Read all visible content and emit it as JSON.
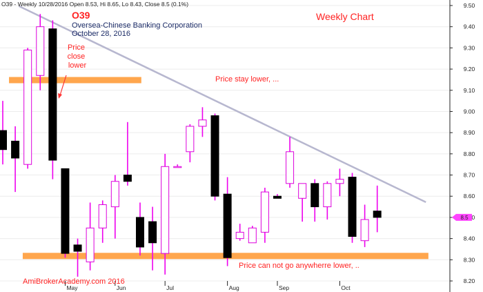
{
  "header": {
    "info_line": "O39 - Weekly 10/28/2016 Open 8.53, Hi 8.65, Lo 8.43, Close 8.5 (0.1%)",
    "symbol": "O39",
    "company": "Oversea-Chinese Banking Corporation",
    "date": "October 28, 2016",
    "chart_label": "Weekly Chart",
    "watermark": "AmiBrokerAcademy.com  2016"
  },
  "annotations": {
    "price_close_lower": [
      "Price",
      "close",
      "lower"
    ],
    "price_stay_lower": "Price stay lower, ...",
    "price_floor": "Price can not go anywherre lower, .."
  },
  "colors": {
    "bull_body": "#ffffff",
    "bull_outline": "#dd00dd",
    "bear_body": "#000000",
    "wick": "#ee00ee",
    "support_band": "#ffa64d",
    "trendline": "#b7b7cf",
    "title_red": "#ff2222",
    "subtitle_navy": "#1a2a66",
    "annotation_red": "#ff2222",
    "last_price_tag": "#ff44ff"
  },
  "chart_data": {
    "type": "candlestick",
    "ylim": [
      8.2,
      9.5
    ],
    "yticks": [
      "8.20",
      "8.30",
      "8.40",
      "8.50",
      "8.60",
      "8.70",
      "8.80",
      "8.90",
      "9.00",
      "9.10",
      "9.20",
      "9.30",
      "9.40",
      "9.50"
    ],
    "xticks": [
      {
        "label": "May",
        "index": 5
      },
      {
        "label": "Jun",
        "index": 9
      },
      {
        "label": "Jul",
        "index": 13
      },
      {
        "label": "Aug",
        "index": 18
      },
      {
        "label": "Sep",
        "index": 22
      },
      {
        "label": "Oct",
        "index": 27
      }
    ],
    "last_price": "8.5",
    "candles": [
      {
        "o": 8.91,
        "h": 9.05,
        "l": 8.75,
        "c": 8.82
      },
      {
        "o": 8.86,
        "h": 8.93,
        "l": 8.62,
        "c": 8.78
      },
      {
        "o": 8.75,
        "h": 9.3,
        "l": 8.73,
        "c": 9.29
      },
      {
        "o": 9.17,
        "h": 9.46,
        "l": 9.1,
        "c": 9.4
      },
      {
        "o": 9.39,
        "h": 9.43,
        "l": 8.68,
        "c": 8.77
      },
      {
        "o": 8.73,
        "h": 8.73,
        "l": 8.31,
        "c": 8.33
      },
      {
        "o": 8.37,
        "h": 8.4,
        "l": 8.22,
        "c": 8.34
      },
      {
        "o": 8.29,
        "h": 8.57,
        "l": 8.25,
        "c": 8.45
      },
      {
        "o": 8.45,
        "h": 8.58,
        "l": 8.38,
        "c": 8.56
      },
      {
        "o": 8.55,
        "h": 8.7,
        "l": 8.4,
        "c": 8.67
      },
      {
        "o": 8.7,
        "h": 8.95,
        "l": 8.65,
        "c": 8.67
      },
      {
        "o": 8.5,
        "h": 8.57,
        "l": 8.32,
        "c": 8.36
      },
      {
        "o": 8.48,
        "h": 8.55,
        "l": 8.25,
        "c": 8.38
      },
      {
        "o": 8.33,
        "h": 8.8,
        "l": 8.23,
        "c": 8.74
      },
      {
        "o": 8.74,
        "h": 8.75,
        "l": 8.74,
        "c": 8.74
      },
      {
        "o": 8.81,
        "h": 8.94,
        "l": 8.76,
        "c": 8.93
      },
      {
        "o": 8.93,
        "h": 9.02,
        "l": 8.88,
        "c": 8.96
      },
      {
        "o": 8.98,
        "h": 8.99,
        "l": 8.58,
        "c": 8.6
      },
      {
        "o": 8.61,
        "h": 8.69,
        "l": 8.27,
        "c": 8.31
      },
      {
        "o": 8.4,
        "h": 8.47,
        "l": 8.39,
        "c": 8.43
      },
      {
        "o": 8.38,
        "h": 8.46,
        "l": 8.38,
        "c": 8.45
      },
      {
        "o": 8.43,
        "h": 8.64,
        "l": 8.38,
        "c": 8.62
      },
      {
        "o": 8.6,
        "h": 8.61,
        "l": 8.59,
        "c": 8.59
      },
      {
        "o": 8.66,
        "h": 8.88,
        "l": 8.64,
        "c": 8.81
      },
      {
        "o": 8.59,
        "h": 8.66,
        "l": 8.48,
        "c": 8.66
      },
      {
        "o": 8.66,
        "h": 8.68,
        "l": 8.48,
        "c": 8.55
      },
      {
        "o": 8.55,
        "h": 8.67,
        "l": 8.49,
        "c": 8.66
      },
      {
        "o": 8.66,
        "h": 8.73,
        "l": 8.6,
        "c": 8.68
      },
      {
        "o": 8.69,
        "h": 8.71,
        "l": 8.38,
        "c": 8.41
      },
      {
        "o": 8.39,
        "h": 8.56,
        "l": 8.36,
        "c": 8.49
      },
      {
        "o": 8.53,
        "h": 8.65,
        "l": 8.43,
        "c": 8.5
      }
    ],
    "support_bands": [
      {
        "name": "resistance-band",
        "y": 9.148,
        "from": 0.5,
        "to": 11.1
      },
      {
        "name": "support-band",
        "y": 8.318,
        "from": 1.6,
        "to": 34.1
      }
    ],
    "trendline": {
      "from": {
        "index": 1.3,
        "price": 9.497
      },
      "to": {
        "index": 33.9,
        "price": 8.572
      }
    }
  }
}
